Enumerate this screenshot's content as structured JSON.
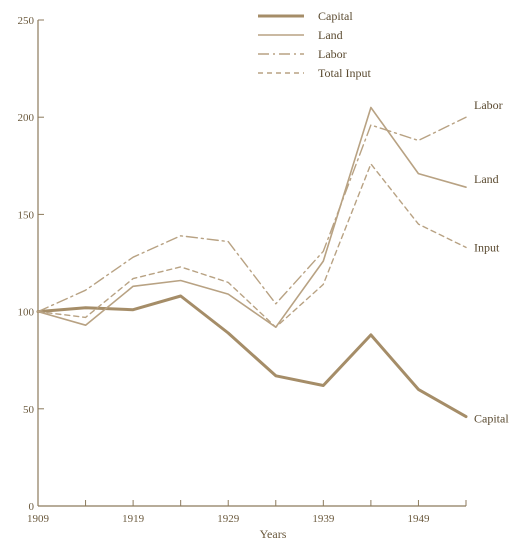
{
  "chart_data": {
    "type": "line",
    "xlabel": "Years",
    "ylabel": "",
    "xlim": [
      1909,
      1954
    ],
    "ylim": [
      0,
      250
    ],
    "x_ticks": [
      1909,
      1914,
      1919,
      1924,
      1929,
      1934,
      1939,
      1944,
      1949,
      1954
    ],
    "x_tick_labels": [
      "1909",
      "1919",
      "1929",
      "1939",
      "1949"
    ],
    "x_tick_label_years": [
      1909,
      1919,
      1929,
      1939,
      1949
    ],
    "y_ticks": [
      0,
      50,
      100,
      150,
      200,
      250
    ],
    "y_tick_labels": [
      "0",
      "50",
      "100",
      "150",
      "200",
      "250"
    ],
    "grid": false,
    "legend_position": "top-center",
    "series": [
      {
        "name": "Capital",
        "end_label": "Capital",
        "style": "thick",
        "color": "#a58d68",
        "points": [
          [
            1909,
            100
          ],
          [
            1914,
            102
          ],
          [
            1919,
            101
          ],
          [
            1924,
            108
          ],
          [
            1929,
            89
          ],
          [
            1934,
            67
          ],
          [
            1939,
            62
          ],
          [
            1944,
            88
          ],
          [
            1949,
            60
          ],
          [
            1954,
            46
          ]
        ]
      },
      {
        "name": "Land",
        "end_label": "Land",
        "style": "solid",
        "color": "#b8a283",
        "points": [
          [
            1909,
            100
          ],
          [
            1914,
            93
          ],
          [
            1919,
            113
          ],
          [
            1924,
            116
          ],
          [
            1929,
            109
          ],
          [
            1934,
            92
          ],
          [
            1939,
            126
          ],
          [
            1944,
            205
          ],
          [
            1949,
            171
          ],
          [
            1954,
            164
          ]
        ]
      },
      {
        "name": "Labor",
        "end_label": "Labor",
        "style": "dashdot",
        "color": "#b8a283",
        "points": [
          [
            1909,
            100
          ],
          [
            1914,
            111
          ],
          [
            1919,
            128
          ],
          [
            1924,
            139
          ],
          [
            1929,
            136
          ],
          [
            1934,
            104
          ],
          [
            1939,
            131
          ],
          [
            1944,
            196
          ],
          [
            1949,
            188
          ],
          [
            1954,
            200
          ]
        ]
      },
      {
        "name": "Total Input",
        "end_label": "Input",
        "style": "dashed",
        "color": "#b8a283",
        "points": [
          [
            1909,
            100
          ],
          [
            1914,
            97
          ],
          [
            1919,
            117
          ],
          [
            1924,
            123
          ],
          [
            1929,
            115
          ],
          [
            1934,
            92
          ],
          [
            1939,
            114
          ],
          [
            1944,
            176
          ],
          [
            1949,
            145
          ],
          [
            1954,
            133
          ]
        ]
      }
    ]
  }
}
